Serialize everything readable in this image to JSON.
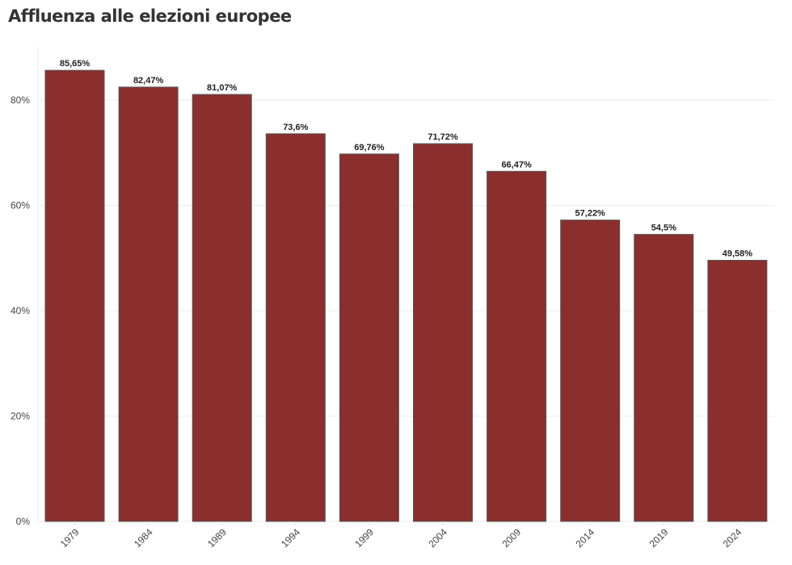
{
  "chart_data": {
    "type": "bar",
    "title": "Affluenza alle elezioni europee",
    "xlabel": "",
    "ylabel": "",
    "categories": [
      "1979",
      "1984",
      "1989",
      "1994",
      "1999",
      "2004",
      "2009",
      "2014",
      "2019",
      "2024"
    ],
    "values": [
      85.65,
      82.47,
      81.07,
      73.6,
      69.76,
      71.72,
      66.47,
      57.22,
      54.5,
      49.58
    ],
    "data_labels": [
      "85,65%",
      "82,47%",
      "81,07%",
      "73,6%",
      "69,76%",
      "71,72%",
      "66,47%",
      "57,22%",
      "54,5%",
      "49,58%"
    ],
    "yticks": [
      0,
      20,
      40,
      60,
      80
    ],
    "ytick_labels": [
      "0%",
      "20%",
      "40%",
      "60%",
      "80%"
    ],
    "ylim": [
      0,
      91
    ],
    "grid": true,
    "bar_color": "#8b2e2e",
    "bar_border": "#555555"
  }
}
